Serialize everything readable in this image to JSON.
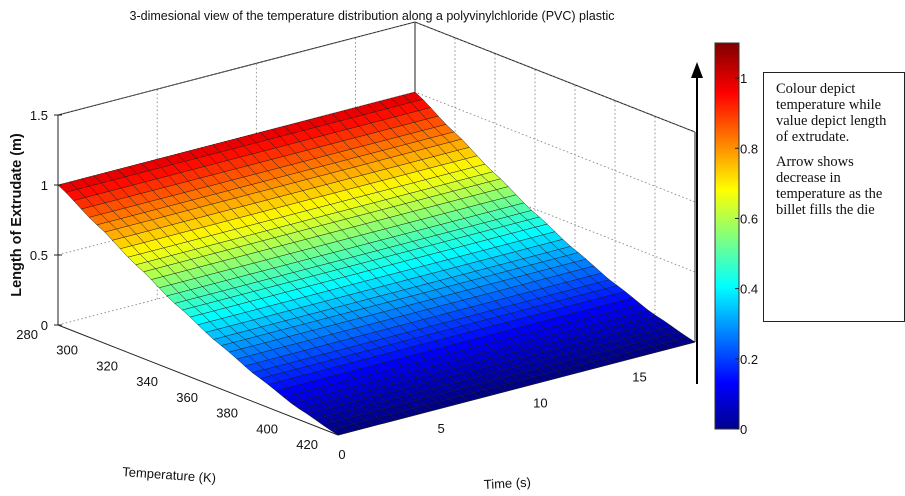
{
  "chart_data": {
    "type": "surface3d",
    "title": "3-dimesional view of the temperature distribution along a polyvinylchloride (PVC) plastic",
    "xlabel": "Temperature (K)",
    "ylabel": "Time (s)",
    "zlabel": "Length of Extrudate (m)",
    "x_ticks": [
      "280",
      "300",
      "320",
      "340",
      "360",
      "380",
      "400",
      "420"
    ],
    "y_ticks": [
      "0",
      "5",
      "10",
      "15"
    ],
    "z_ticks": [
      "0",
      "0.5",
      "1",
      "1.5"
    ],
    "xlim": [
      280,
      420
    ],
    "ylim": [
      0,
      18
    ],
    "zlim": [
      0,
      1.5
    ],
    "colorbar": {
      "ticks": [
        "0",
        "0.2",
        "0.4",
        "0.6",
        "0.8",
        "1"
      ],
      "range": [
        0,
        1.1
      ],
      "colormap": "jet"
    },
    "temperature": [
      280,
      300,
      320,
      340,
      360,
      380,
      400,
      420
    ],
    "length_profile": [
      1.0,
      0.82,
      0.64,
      0.47,
      0.32,
      0.19,
      0.08,
      0.0
    ],
    "surface_note": "length is constant along Time for each Temperature",
    "grid": true
  },
  "annotation": {
    "para1": "Colour depict temperature while value depict length of extrudate.",
    "para2": "Arrow shows decrease in temperature as the billet fills the die"
  },
  "colors": {
    "colormap_stops": [
      "#00008f",
      "#0000ff",
      "#00ffff",
      "#ffff00",
      "#ff0000",
      "#800000"
    ]
  }
}
